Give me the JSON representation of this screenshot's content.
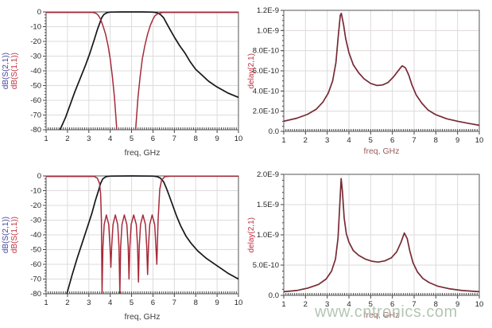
{
  "watermark": {
    "text": "www.cntronics.com",
    "color": "#a7bda7"
  },
  "chart_data": [
    {
      "type": "line",
      "xlabel": "freq, GHz",
      "xlabel_color": "#3f3f3f",
      "ylabels": [
        {
          "text": "dB(S(2,1))",
          "color": "#4646a0"
        },
        {
          "text": "dB(S(1,1))",
          "color": "#c03040"
        }
      ],
      "xlim": [
        1,
        10
      ],
      "ylim": [
        -80,
        0
      ],
      "x_ticks": [
        1,
        2,
        3,
        4,
        5,
        6,
        7,
        8,
        9,
        10
      ],
      "x_tick_labels": [
        "1",
        "2",
        "3",
        "4",
        "5",
        "6",
        "7",
        "8",
        "9",
        "10"
      ],
      "y_ticks": [
        0,
        -10,
        -20,
        -30,
        -40,
        -50,
        -60,
        -70,
        -80
      ],
      "y_tick_labels": [
        "0",
        "-10",
        "-20",
        "-30",
        "-40",
        "-50",
        "-60",
        "-70",
        "-80"
      ],
      "x_minor": 0.1,
      "y_minor": 2,
      "grid_color": "#dcdcdc",
      "series": [
        {
          "name": "dB(S(2,1))",
          "color": "#16161c",
          "width": 1.7,
          "points": [
            [
              1.65,
              -80
            ],
            [
              1.9,
              -72
            ],
            [
              2.1,
              -64
            ],
            [
              2.35,
              -54
            ],
            [
              2.6,
              -45
            ],
            [
              2.85,
              -36
            ],
            [
              3.05,
              -28
            ],
            [
              3.25,
              -19
            ],
            [
              3.4,
              -12
            ],
            [
              3.5,
              -8
            ],
            [
              3.6,
              -4
            ],
            [
              3.7,
              -1.8
            ],
            [
              3.85,
              -0.5
            ],
            [
              4.0,
              -0.1
            ],
            [
              4.5,
              0
            ],
            [
              5.5,
              0
            ],
            [
              6.0,
              -0.1
            ],
            [
              6.2,
              -0.6
            ],
            [
              6.35,
              -1.8
            ],
            [
              6.5,
              -4
            ],
            [
              6.65,
              -8
            ],
            [
              6.8,
              -12
            ],
            [
              7.0,
              -17
            ],
            [
              7.25,
              -23
            ],
            [
              7.5,
              -28
            ],
            [
              7.75,
              -34
            ],
            [
              8.0,
              -39
            ],
            [
              8.3,
              -43
            ],
            [
              8.6,
              -47
            ],
            [
              9.0,
              -51
            ],
            [
              9.5,
              -55
            ],
            [
              10,
              -58
            ]
          ]
        },
        {
          "name": "dB(S(1,1))",
          "color": "#a62a3a",
          "width": 1.5,
          "points": [
            [
              1,
              -0.3
            ],
            [
              3.2,
              -0.3
            ],
            [
              3.35,
              -1
            ],
            [
              3.45,
              -2.5
            ],
            [
              3.55,
              -5
            ],
            [
              3.65,
              -9
            ],
            [
              3.78,
              -15
            ],
            [
              3.9,
              -23
            ],
            [
              4.0,
              -32
            ],
            [
              4.1,
              -44
            ],
            [
              4.2,
              -58
            ],
            [
              4.3,
              -78
            ],
            [
              4.33,
              -92
            ],
            [
              5.17,
              -92
            ],
            [
              5.2,
              -78
            ],
            [
              5.3,
              -58
            ],
            [
              5.4,
              -44
            ],
            [
              5.5,
              -32
            ],
            [
              5.62,
              -23
            ],
            [
              5.75,
              -15
            ],
            [
              5.88,
              -9
            ],
            [
              6.0,
              -5
            ],
            [
              6.1,
              -2.5
            ],
            [
              6.25,
              -1
            ],
            [
              6.45,
              -0.3
            ],
            [
              10,
              -0.3
            ]
          ]
        }
      ]
    },
    {
      "type": "line",
      "xlabel": "freq, GHz",
      "xlabel_color": "#9c5a5a",
      "ylabels": [
        {
          "text": "delay(2,1)",
          "color": "#c03040"
        }
      ],
      "xlim": [
        1,
        10
      ],
      "ylim": [
        0,
        1.2e-09
      ],
      "x_ticks": [
        1,
        2,
        3,
        4,
        5,
        6,
        7,
        8,
        9,
        10
      ],
      "x_tick_labels": [
        "1",
        "2",
        "3",
        "4",
        "5",
        "6",
        "7",
        "8",
        "9",
        "10"
      ],
      "y_ticks": [
        0,
        2e-10,
        4e-10,
        6e-10,
        8e-10,
        1e-09,
        1.2e-09
      ],
      "y_tick_labels": [
        "0.0",
        "2.0E-10",
        "4.0E-10",
        "6.0E-10",
        "8.0E-10",
        "1.0E-9",
        "1.2E-9"
      ],
      "x_minor": 0.1,
      "y_minor": 5e-11,
      "grid_color": "#dedada",
      "series": [
        {
          "name": "delay(2,1)",
          "color": "#772b34",
          "width": 1.7,
          "points": [
            [
              1,
              1e-10
            ],
            [
              1.6,
              1.3e-10
            ],
            [
              2.1,
              1.7e-10
            ],
            [
              2.5,
              2.2e-10
            ],
            [
              2.8,
              2.9e-10
            ],
            [
              3.05,
              3.8e-10
            ],
            [
              3.25,
              5e-10
            ],
            [
              3.4,
              6.8e-10
            ],
            [
              3.5,
              9.2e-10
            ],
            [
              3.6,
              1.15e-09
            ],
            [
              3.65,
              1.17e-09
            ],
            [
              3.75,
              1.06e-09
            ],
            [
              3.85,
              9.2e-10
            ],
            [
              4.0,
              7.8e-10
            ],
            [
              4.2,
              6.6e-10
            ],
            [
              4.45,
              5.8e-10
            ],
            [
              4.7,
              5.2e-10
            ],
            [
              5.0,
              4.75e-10
            ],
            [
              5.3,
              4.55e-10
            ],
            [
              5.55,
              4.6e-10
            ],
            [
              5.8,
              4.85e-10
            ],
            [
              6.05,
              5.4e-10
            ],
            [
              6.3,
              6.1e-10
            ],
            [
              6.45,
              6.5e-10
            ],
            [
              6.6,
              6.3e-10
            ],
            [
              6.75,
              5.6e-10
            ],
            [
              6.9,
              4.6e-10
            ],
            [
              7.1,
              3.6e-10
            ],
            [
              7.35,
              2.8e-10
            ],
            [
              7.65,
              2.1e-10
            ],
            [
              8.0,
              1.65e-10
            ],
            [
              8.5,
              1.25e-10
            ],
            [
              9.0,
              1e-10
            ],
            [
              9.5,
              8e-11
            ],
            [
              10,
              6e-11
            ]
          ]
        }
      ]
    },
    {
      "type": "line",
      "xlabel": "freq, GHz",
      "xlabel_color": "#3f3f3f",
      "ylabels": [
        {
          "text": "dB(S(2,1))",
          "color": "#4646a0"
        },
        {
          "text": "dB(S(1,1))",
          "color": "#c03040"
        }
      ],
      "xlim": [
        1,
        10
      ],
      "ylim": [
        -80,
        0
      ],
      "x_ticks": [
        1,
        2,
        3,
        4,
        5,
        6,
        7,
        8,
        9,
        10
      ],
      "x_tick_labels": [
        "1",
        "2",
        "3",
        "4",
        "5",
        "6",
        "7",
        "8",
        "9",
        "10"
      ],
      "y_ticks": [
        0,
        -10,
        -20,
        -30,
        -40,
        -50,
        -60,
        -70,
        -80
      ],
      "y_tick_labels": [
        "0",
        "-10",
        "-20",
        "-30",
        "-40",
        "-50",
        "-60",
        "-70",
        "-80"
      ],
      "x_minor": 0.1,
      "y_minor": 2,
      "grid_color": "#dcdcdc",
      "series": [
        {
          "name": "dB(S(2,1))",
          "color": "#16161c",
          "width": 1.7,
          "points": [
            [
              1.97,
              -80
            ],
            [
              2.2,
              -68
            ],
            [
              2.45,
              -56
            ],
            [
              2.7,
              -45
            ],
            [
              2.95,
              -34
            ],
            [
              3.15,
              -25
            ],
            [
              3.3,
              -17
            ],
            [
              3.45,
              -10
            ],
            [
              3.55,
              -5
            ],
            [
              3.65,
              -2
            ],
            [
              3.8,
              -0.5
            ],
            [
              4.0,
              -0.1
            ],
            [
              5.0,
              0
            ],
            [
              6.0,
              -0.1
            ],
            [
              6.2,
              -0.5
            ],
            [
              6.35,
              -1.5
            ],
            [
              6.5,
              -4
            ],
            [
              6.62,
              -8
            ],
            [
              6.75,
              -13
            ],
            [
              6.9,
              -19
            ],
            [
              7.1,
              -27
            ],
            [
              7.3,
              -34
            ],
            [
              7.55,
              -41
            ],
            [
              7.8,
              -46
            ],
            [
              8.1,
              -51
            ],
            [
              8.5,
              -56
            ],
            [
              9.0,
              -61
            ],
            [
              9.5,
              -66
            ],
            [
              10,
              -70
            ]
          ]
        },
        {
          "name": "dB(S(1,1))",
          "color": "#a62a3a",
          "width": 1.5,
          "points": [
            [
              1,
              -0.3
            ],
            [
              3.25,
              -0.3
            ],
            [
              3.4,
              -1.5
            ],
            [
              3.5,
              -5
            ],
            [
              3.55,
              -12
            ],
            [
              3.59,
              -30
            ],
            [
              3.62,
              -80
            ],
            [
              3.66,
              -48
            ],
            [
              3.72,
              -33
            ],
            [
              3.82,
              -26.5
            ],
            [
              3.93,
              -33
            ],
            [
              3.99,
              -48
            ],
            [
              4.03,
              -62
            ],
            [
              4.07,
              -48
            ],
            [
              4.13,
              -33
            ],
            [
              4.24,
              -26.5
            ],
            [
              4.35,
              -33
            ],
            [
              4.41,
              -48
            ],
            [
              4.45,
              -80
            ],
            [
              4.49,
              -48
            ],
            [
              4.55,
              -33
            ],
            [
              4.66,
              -26.5
            ],
            [
              4.78,
              -33
            ],
            [
              4.84,
              -48
            ],
            [
              4.88,
              -70
            ],
            [
              4.92,
              -48
            ],
            [
              4.98,
              -33
            ],
            [
              5.1,
              -26.5
            ],
            [
              5.22,
              -33
            ],
            [
              5.28,
              -48
            ],
            [
              5.32,
              -72
            ],
            [
              5.36,
              -48
            ],
            [
              5.42,
              -33
            ],
            [
              5.53,
              -26.5
            ],
            [
              5.65,
              -33
            ],
            [
              5.71,
              -48
            ],
            [
              5.75,
              -67
            ],
            [
              5.79,
              -48
            ],
            [
              5.85,
              -33
            ],
            [
              5.96,
              -26.5
            ],
            [
              6.08,
              -33
            ],
            [
              6.14,
              -48
            ],
            [
              6.18,
              -60
            ],
            [
              6.24,
              -30
            ],
            [
              6.32,
              -9
            ],
            [
              6.4,
              -3
            ],
            [
              6.55,
              -0.5
            ],
            [
              6.8,
              -0.2
            ],
            [
              10,
              -0.2
            ]
          ]
        }
      ]
    },
    {
      "type": "line",
      "xlabel": "freq, GHz",
      "xlabel_color": "#9c5a5a",
      "ylabels": [
        {
          "text": "delay(2,1)",
          "color": "#c03040"
        }
      ],
      "xlim": [
        1,
        10
      ],
      "ylim": [
        0,
        2e-09
      ],
      "x_ticks": [
        1,
        2,
        3,
        4,
        5,
        6,
        7,
        8,
        9,
        10
      ],
      "x_tick_labels": [
        "1",
        "2",
        "3",
        "4",
        "5",
        "6",
        "7",
        "8",
        "9",
        "10"
      ],
      "y_ticks": [
        0,
        5e-10,
        1e-09,
        1.5e-09,
        2e-09
      ],
      "y_tick_labels": [
        "0.0",
        "5.0E-10",
        "1.0E-9",
        "1.5E-9",
        "2.0E-9"
      ],
      "x_minor": 0.1,
      "y_minor": 1e-10,
      "grid_color": "#dedada",
      "series": [
        {
          "name": "delay(2,1)",
          "color": "#772b34",
          "width": 1.7,
          "points": [
            [
              1,
              6e-11
            ],
            [
              1.6,
              8e-11
            ],
            [
              2.1,
              1.2e-10
            ],
            [
              2.6,
              1.8e-10
            ],
            [
              2.95,
              2.7e-10
            ],
            [
              3.2,
              4e-10
            ],
            [
              3.38,
              6e-10
            ],
            [
              3.5,
              9.5e-10
            ],
            [
              3.58,
              1.5e-09
            ],
            [
              3.64,
              1.93e-09
            ],
            [
              3.7,
              1.72e-09
            ],
            [
              3.78,
              1.28e-09
            ],
            [
              3.88,
              1.02e-09
            ],
            [
              4.0,
              8.8e-10
            ],
            [
              4.2,
              7.4e-10
            ],
            [
              4.45,
              6.6e-10
            ],
            [
              4.75,
              6e-10
            ],
            [
              5.05,
              5.65e-10
            ],
            [
              5.35,
              5.5e-10
            ],
            [
              5.65,
              5.7e-10
            ],
            [
              5.95,
              6.2e-10
            ],
            [
              6.2,
              7.2e-10
            ],
            [
              6.4,
              8.8e-10
            ],
            [
              6.55,
              1.03e-09
            ],
            [
              6.68,
              9.4e-10
            ],
            [
              6.8,
              7.4e-10
            ],
            [
              6.95,
              5.4e-10
            ],
            [
              7.15,
              3.9e-10
            ],
            [
              7.4,
              2.8e-10
            ],
            [
              7.7,
              2.1e-10
            ],
            [
              8.1,
              1.5e-10
            ],
            [
              8.6,
              1.1e-10
            ],
            [
              9.2,
              8e-11
            ],
            [
              10,
              6e-11
            ]
          ]
        }
      ]
    }
  ]
}
